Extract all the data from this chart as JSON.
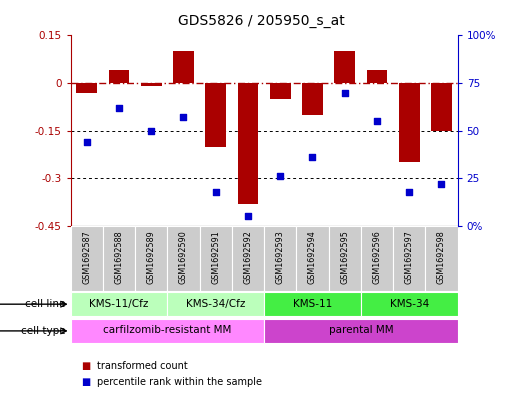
{
  "title": "GDS5826 / 205950_s_at",
  "samples": [
    "GSM1692587",
    "GSM1692588",
    "GSM1692589",
    "GSM1692590",
    "GSM1692591",
    "GSM1692592",
    "GSM1692593",
    "GSM1692594",
    "GSM1692595",
    "GSM1692596",
    "GSM1692597",
    "GSM1692598"
  ],
  "bar_values": [
    -0.03,
    0.04,
    -0.01,
    0.1,
    -0.2,
    -0.38,
    -0.05,
    -0.1,
    0.1,
    0.04,
    -0.25,
    -0.15
  ],
  "dot_values_pct": [
    44,
    62,
    50,
    57,
    18,
    5,
    26,
    36,
    70,
    55,
    18,
    22
  ],
  "bar_color": "#aa0000",
  "dot_color": "#0000cc",
  "left_ylim": [
    -0.45,
    0.15
  ],
  "right_ylim": [
    0,
    100
  ],
  "left_yticks": [
    -0.45,
    -0.3,
    -0.15,
    0.0,
    0.15
  ],
  "right_yticks": [
    0,
    25,
    50,
    75,
    100
  ],
  "left_yticklabels": [
    "-0.45",
    "-0.3",
    "-0.15",
    "0",
    "0.15"
  ],
  "right_yticklabels": [
    "0%",
    "25",
    "50",
    "75",
    "100%"
  ],
  "cell_line_groups": [
    {
      "label": "KMS-11/Cfz",
      "start": 0,
      "end": 2,
      "color": "#bbffbb"
    },
    {
      "label": "KMS-34/Cfz",
      "start": 3,
      "end": 5,
      "color": "#bbffbb"
    },
    {
      "label": "KMS-11",
      "start": 6,
      "end": 8,
      "color": "#44ee44"
    },
    {
      "label": "KMS-34",
      "start": 9,
      "end": 11,
      "color": "#44ee44"
    }
  ],
  "cell_type_groups": [
    {
      "label": "carfilzomib-resistant MM",
      "start": 0,
      "end": 5,
      "color": "#ff88ff"
    },
    {
      "label": "parental MM",
      "start": 6,
      "end": 11,
      "color": "#cc44cc"
    }
  ],
  "sample_bg_color": "#cccccc",
  "legend_items": [
    {
      "color": "#aa0000",
      "label": "transformed count"
    },
    {
      "color": "#0000cc",
      "label": "percentile rank within the sample"
    }
  ]
}
